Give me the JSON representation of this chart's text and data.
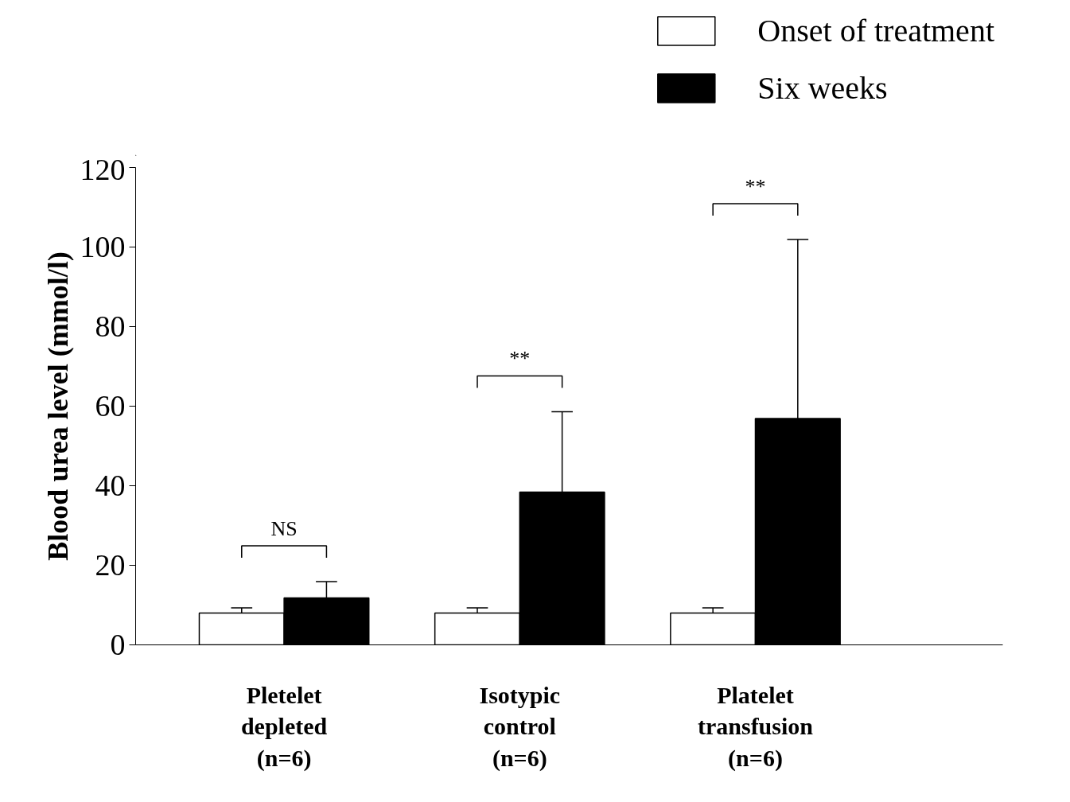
{
  "chart_data": {
    "type": "bar",
    "ylabel": "Blood urea level (mmol/l)",
    "categories": [
      "Pletelet\ndepleted\n(n=6)",
      "Isotypic\ncontrol\n(n=6)",
      "Platelet\ntransfusion\n(n=6)"
    ],
    "series": [
      {
        "name": "Onset of treatment",
        "color": "#ffffff",
        "values": [
          8,
          8,
          8
        ],
        "errors": [
          [
            8,
            9.3
          ],
          [
            8,
            9.3
          ],
          [
            8,
            9.3
          ]
        ]
      },
      {
        "name": "Six weeks",
        "color": "#000000",
        "values": [
          11.8,
          38.4,
          56.9
        ],
        "errors": [
          [
            11.8,
            15.9
          ],
          [
            38.4,
            58.6
          ],
          [
            56.9,
            101.9
          ]
        ]
      }
    ],
    "ylim": [
      0,
      120
    ],
    "yticks": [
      0,
      20,
      40,
      60,
      80,
      100,
      120
    ],
    "grid": false,
    "legend": "top right",
    "annotations": [
      "NS",
      "**",
      "**"
    ]
  }
}
